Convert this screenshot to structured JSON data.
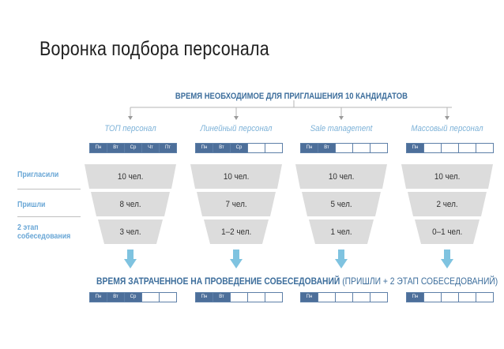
{
  "title": "Воронка подбора персонала",
  "top_header": "ВРЕМЯ НЕОБХОДИМОЕ ДЛЯ ПРИГЛАШЕНИЯ 10 КАНДИДАТОВ",
  "row_labels": {
    "invited": "Пригласили",
    "came": "Пришли",
    "second_line1": "2 этап",
    "second_line2": "собеседования"
  },
  "columns": [
    {
      "title": "ТОП персонал",
      "days": [
        {
          "label": "Пн",
          "filled": true
        },
        {
          "label": "Вт",
          "filled": true
        },
        {
          "label": "Ср",
          "filled": true
        },
        {
          "label": "Чт",
          "filled": true
        },
        {
          "label": "Пт",
          "filled": true
        }
      ],
      "funnel": [
        "10 чел.",
        "8 чел.",
        "3 чел."
      ],
      "bottom_days": [
        {
          "label": "Пн",
          "filled": true
        },
        {
          "label": "Вт",
          "filled": true
        },
        {
          "label": "Ср",
          "filled": true
        },
        {
          "label": "",
          "filled": false
        },
        {
          "label": "",
          "filled": false
        }
      ]
    },
    {
      "title": "Линейный персонал",
      "days": [
        {
          "label": "Пн",
          "filled": true
        },
        {
          "label": "Вт",
          "filled": true
        },
        {
          "label": "Ср",
          "filled": true
        },
        {
          "label": "",
          "filled": false
        },
        {
          "label": "",
          "filled": false
        }
      ],
      "funnel": [
        "10 чел.",
        "7 чел.",
        "1–2 чел."
      ],
      "bottom_days": [
        {
          "label": "Пн",
          "filled": true
        },
        {
          "label": "Вт",
          "filled": true
        },
        {
          "label": "",
          "filled": false
        },
        {
          "label": "",
          "filled": false
        },
        {
          "label": "",
          "filled": false
        }
      ]
    },
    {
      "title": "Sale management",
      "days": [
        {
          "label": "Пн",
          "filled": true
        },
        {
          "label": "Вт",
          "filled": true
        },
        {
          "label": "",
          "filled": false
        },
        {
          "label": "",
          "filled": false
        },
        {
          "label": "",
          "filled": false
        }
      ],
      "funnel": [
        "10 чел.",
        "5 чел.",
        "1 чел."
      ],
      "bottom_days": [
        {
          "label": "Пн",
          "filled": true
        },
        {
          "label": "",
          "filled": false
        },
        {
          "label": "",
          "filled": false
        },
        {
          "label": "",
          "filled": false
        },
        {
          "label": "",
          "filled": false
        }
      ]
    },
    {
      "title": "Массовый персонал",
      "days": [
        {
          "label": "Пн",
          "filled": true
        },
        {
          "label": "",
          "filled": false
        },
        {
          "label": "",
          "filled": false
        },
        {
          "label": "",
          "filled": false
        },
        {
          "label": "",
          "filled": false
        }
      ],
      "funnel": [
        "10 чел.",
        "2 чел.",
        "0–1 чел."
      ],
      "bottom_days": [
        {
          "label": "Пн",
          "filled": true
        },
        {
          "label": "",
          "filled": false
        },
        {
          "label": "",
          "filled": false
        },
        {
          "label": "",
          "filled": false
        },
        {
          "label": "",
          "filled": false
        }
      ]
    }
  ],
  "bottom_header": {
    "bold": "ВРЕМЯ ЗАТРАЧЕННОЕ  НА ПРОВЕДЕНИЕ СОБЕСЕДОВАНИЙ",
    "normal": " (ПРИШЛИ + 2 ЭТАП СОБЕСЕДОВАНИЙ)"
  },
  "colors": {
    "accent_dark": "#3d6e9c",
    "accent_light": "#7db2d8",
    "row_label": "#6aa7d6",
    "day_fill": "#4d6f9a",
    "funnel_gray": "#dcdcdc",
    "arrow": "#7fc3e0"
  }
}
